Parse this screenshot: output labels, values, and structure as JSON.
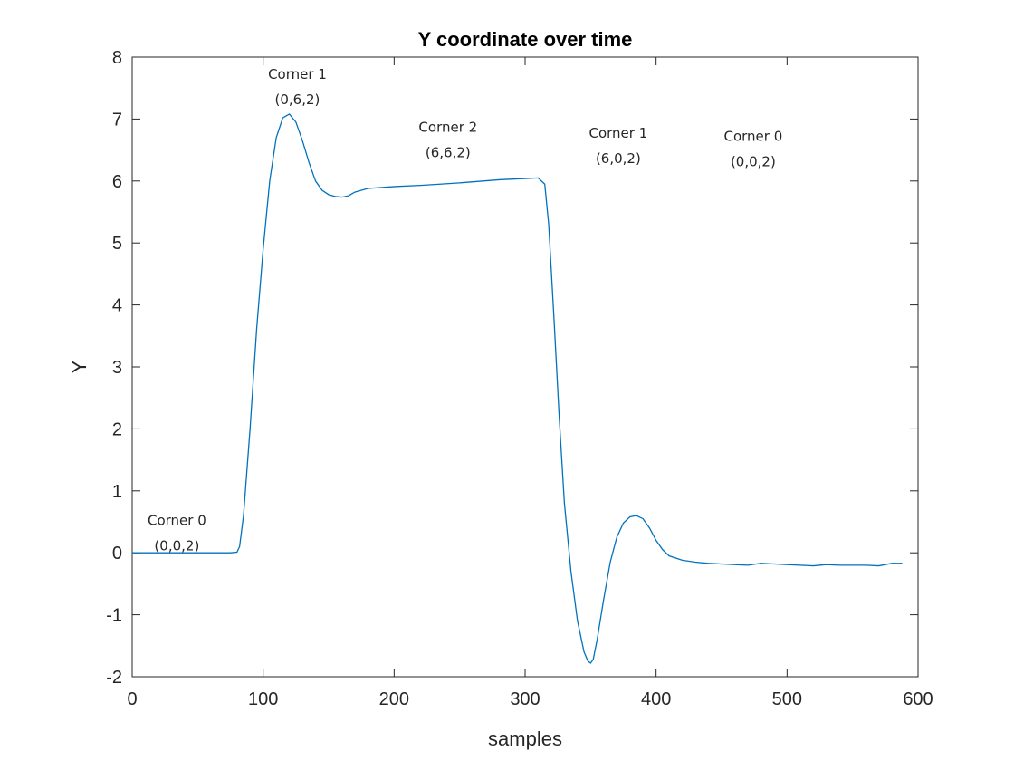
{
  "chart_data": {
    "type": "line",
    "title": "Y coordinate over time",
    "xlabel": "samples",
    "ylabel": "Y",
    "xlim": [
      0,
      600
    ],
    "ylim": [
      -2,
      8
    ],
    "xticks": [
      0,
      100,
      200,
      300,
      400,
      500,
      600
    ],
    "yticks": [
      -2,
      -1,
      0,
      1,
      2,
      3,
      4,
      5,
      6,
      7,
      8
    ],
    "grid": false,
    "line_color": "#0072BD",
    "series": [
      {
        "x": [
          0,
          20,
          40,
          60,
          75,
          80,
          82,
          85,
          90,
          95,
          100,
          105,
          110,
          115,
          120,
          125,
          130,
          135,
          140,
          145,
          150,
          155,
          160,
          165,
          170,
          180,
          200,
          220,
          250,
          280,
          300,
          310,
          315,
          318,
          322,
          326,
          330,
          335,
          340,
          345,
          348,
          350,
          352,
          355,
          360,
          365,
          370,
          375,
          380,
          385,
          390,
          395,
          400,
          405,
          410,
          420,
          430,
          440,
          450,
          460,
          470,
          480,
          490,
          500,
          510,
          520,
          530,
          540,
          550,
          560,
          570,
          580,
          588
        ],
        "y": [
          0,
          0,
          0,
          0,
          0,
          0.01,
          0.1,
          0.6,
          2.0,
          3.6,
          4.9,
          6.0,
          6.7,
          7.02,
          7.08,
          6.95,
          6.65,
          6.3,
          6.0,
          5.85,
          5.78,
          5.75,
          5.74,
          5.76,
          5.82,
          5.88,
          5.91,
          5.93,
          5.97,
          6.02,
          6.04,
          6.05,
          5.95,
          5.3,
          3.8,
          2.2,
          0.8,
          -0.3,
          -1.1,
          -1.6,
          -1.75,
          -1.78,
          -1.72,
          -1.4,
          -0.75,
          -0.15,
          0.25,
          0.48,
          0.58,
          0.6,
          0.55,
          0.4,
          0.2,
          0.05,
          -0.05,
          -0.12,
          -0.15,
          -0.17,
          -0.18,
          -0.19,
          -0.2,
          -0.17,
          -0.18,
          -0.19,
          -0.2,
          -0.21,
          -0.19,
          -0.2,
          -0.2,
          -0.2,
          -0.21,
          -0.17,
          -0.17
        ]
      }
    ],
    "annotations": [
      {
        "line1": "Corner 0",
        "line2": "(0,0,2)",
        "x": 12,
        "y": 0.3
      },
      {
        "line1": "Corner 1",
        "line2": "(0,6,2)",
        "x": 104,
        "y": 7.5
      },
      {
        "line1": "Corner 2",
        "line2": "(6,6,2)",
        "x": 219,
        "y": 6.65
      },
      {
        "line1": "Corner 1",
        "line2": "(6,0,2)",
        "x": 349,
        "y": 6.55
      },
      {
        "line1": "Corner 0",
        "line2": "(0,0,2)",
        "x": 452,
        "y": 6.5
      }
    ]
  }
}
